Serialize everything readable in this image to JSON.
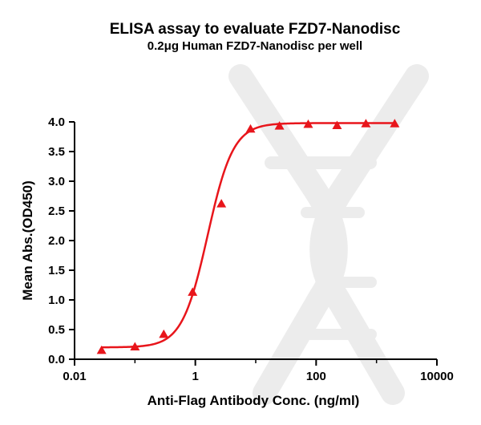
{
  "chart_data": {
    "type": "scatter",
    "title": "ELISA assay to evaluate FZD7-Nanodisc",
    "subtitle": "0.2μg Human FZD7-Nanodisc per well",
    "xlabel": "Anti-Flag Antibody Conc. (ng/ml)",
    "ylabel": "Mean Abs.(OD450)",
    "xscale": "log",
    "xlim": [
      0.01,
      10000
    ],
    "ylim": [
      0,
      4.0
    ],
    "x_ticks": [
      0.01,
      1,
      100,
      10000
    ],
    "x_tick_labels": [
      "0.01",
      "1",
      "100",
      "10000"
    ],
    "y_ticks": [
      0.0,
      0.5,
      1.0,
      1.5,
      2.0,
      2.5,
      3.0,
      3.5,
      4.0
    ],
    "y_tick_labels": [
      "0.0",
      "0.5",
      "1.0",
      "1.5",
      "2.0",
      "2.5",
      "3.0",
      "3.5",
      "4.0"
    ],
    "grid": false,
    "series": [
      {
        "marker": "triangle",
        "color": "#e8151b",
        "x": [
          0.028,
          0.1,
          0.3,
          0.9,
          2.7,
          8.2,
          24.7,
          74,
          222,
          667,
          2000
        ],
        "y": [
          0.15,
          0.21,
          0.42,
          1.13,
          2.62,
          3.88,
          3.93,
          3.96,
          3.94,
          3.97,
          3.97
        ]
      }
    ],
    "fit_curve": {
      "model": "4PL",
      "color": "#e8151b",
      "bottom": 0.2,
      "top": 3.98,
      "ec50": 1.6,
      "hill": 2.05,
      "x_range": [
        0.028,
        2000
      ]
    }
  }
}
